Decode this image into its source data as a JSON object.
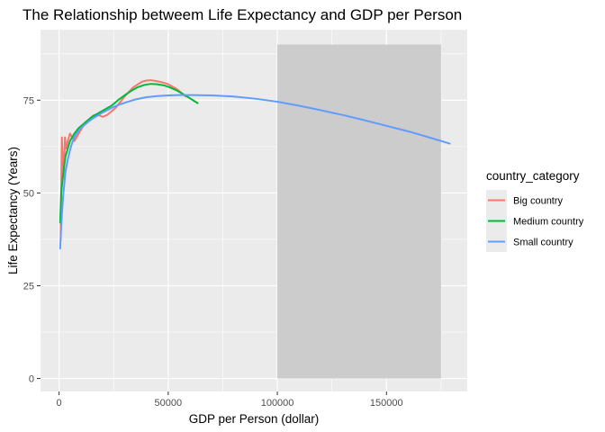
{
  "chart_data": {
    "type": "line",
    "title": "The Relationship betweem Life Expectancy and GDP per Person",
    "xlabel": "GDP per Person (dollar)",
    "ylabel": "Life Expectancy (Years)",
    "xlim": [
      -8500,
      187000
    ],
    "ylim": [
      -3.5,
      94
    ],
    "x_ticks": [
      0,
      50000,
      100000,
      150000
    ],
    "x_tick_labels": [
      "0",
      "50000",
      "100000",
      "150000"
    ],
    "y_ticks": [
      0,
      25,
      50,
      75
    ],
    "y_tick_labels": [
      "0",
      "25",
      "50",
      "75"
    ],
    "grid": true,
    "legend": {
      "title": "country_category",
      "position": "right"
    },
    "highlight_region": {
      "x": [
        100000,
        175000
      ],
      "y": [
        0,
        90
      ],
      "color": "#cccccc"
    },
    "series": [
      {
        "name": "Big country",
        "color": "#F8766D",
        "x": [
          700,
          1000,
          1300,
          1700,
          2200,
          2700,
          3200,
          4000,
          5000,
          6000,
          7000,
          8000,
          9000,
          10000,
          12000,
          14000,
          16000,
          18000,
          20000,
          22000,
          24000,
          26000,
          30000,
          34000,
          38000,
          40000,
          42000,
          44000,
          46000,
          48000,
          50000,
          54000,
          58000
        ],
        "values": [
          37,
          52,
          65,
          60,
          54,
          65,
          62,
          64,
          66,
          65,
          64,
          65,
          66,
          67,
          69,
          70,
          71,
          71,
          70.5,
          71,
          72,
          73,
          76,
          78.5,
          80,
          80.3,
          80.4,
          80.2,
          80,
          79.7,
          79.3,
          78,
          76
        ]
      },
      {
        "name": "Medium country",
        "color": "#00BA38",
        "x": [
          500,
          1000,
          1500,
          2000,
          3000,
          4000,
          5000,
          7000,
          9000,
          11000,
          13000,
          15000,
          18000,
          21000,
          24000,
          27000,
          30000,
          33000,
          36000,
          39000,
          42000,
          45000,
          48000,
          51000,
          54000,
          57000,
          60000,
          63500
        ],
        "values": [
          42,
          50,
          53,
          56,
          60,
          62,
          64,
          66,
          67.5,
          68.5,
          69.5,
          70.5,
          71.5,
          72.5,
          73.5,
          75,
          76.3,
          77.5,
          78.5,
          79.1,
          79.4,
          79.3,
          79,
          78.4,
          77.6,
          76.6,
          75.5,
          74.2
        ]
      },
      {
        "name": "Small country",
        "color": "#619CFF",
        "x": [
          500,
          1000,
          1500,
          2000,
          2500,
          3000,
          4000,
          5000,
          6000,
          7000,
          8000,
          10000,
          12000,
          14000,
          16000,
          18000,
          20000,
          22000,
          25000,
          28000,
          31000,
          35000,
          40000,
          45000,
          50000,
          55000,
          60000,
          70000,
          80000,
          90000,
          100000,
          110000,
          120000,
          130000,
          140000,
          150000,
          160000,
          170000,
          179000
        ],
        "values": [
          35,
          41,
          46,
          50,
          53,
          56,
          59,
          61.5,
          63.5,
          65,
          66,
          67.5,
          68.5,
          69.5,
          70.3,
          71,
          71.7,
          72.3,
          73.2,
          73.9,
          74.5,
          75.2,
          75.8,
          76.1,
          76.3,
          76.4,
          76.4,
          76.3,
          76,
          75.4,
          74.6,
          73.5,
          72.3,
          71,
          69.6,
          68.1,
          66.6,
          64.9,
          63.3
        ]
      }
    ]
  }
}
